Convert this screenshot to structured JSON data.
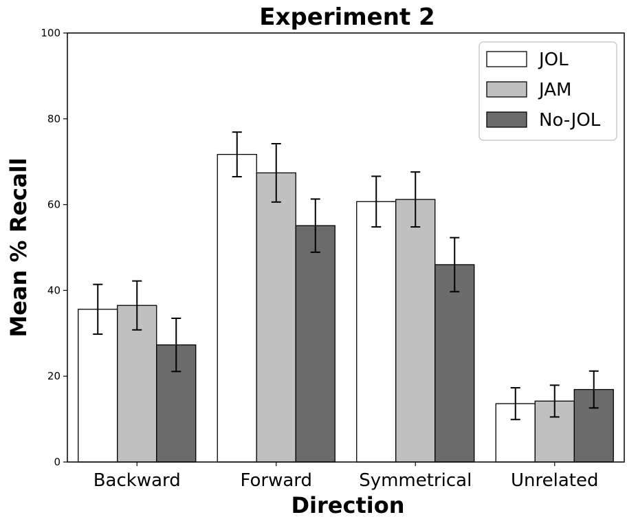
{
  "chart_data": {
    "type": "bar",
    "title": "Experiment 2",
    "xlabel": "Direction",
    "ylabel": "Mean % Recall",
    "categories": [
      "Backward",
      "Forward",
      "Symmetrical",
      "Unrelated"
    ],
    "ylim": [
      0,
      100
    ],
    "yticks": [
      0,
      20,
      40,
      60,
      80,
      100
    ],
    "grid": false,
    "legend_position": "top-right",
    "series": [
      {
        "name": "JOL",
        "color": "#ffffff",
        "values": [
          35.6,
          71.7,
          60.7,
          13.6
        ],
        "err": [
          5.8,
          5.2,
          5.9,
          3.7
        ]
      },
      {
        "name": "JAM",
        "color": "#c0c0c0",
        "values": [
          36.5,
          67.4,
          61.2,
          14.2
        ],
        "err": [
          5.7,
          6.8,
          6.4,
          3.7
        ]
      },
      {
        "name": "No-JOL",
        "color": "#6b6b6b",
        "values": [
          27.3,
          55.1,
          46.0,
          16.9
        ],
        "err": [
          6.2,
          6.2,
          6.3,
          4.3
        ]
      }
    ]
  }
}
